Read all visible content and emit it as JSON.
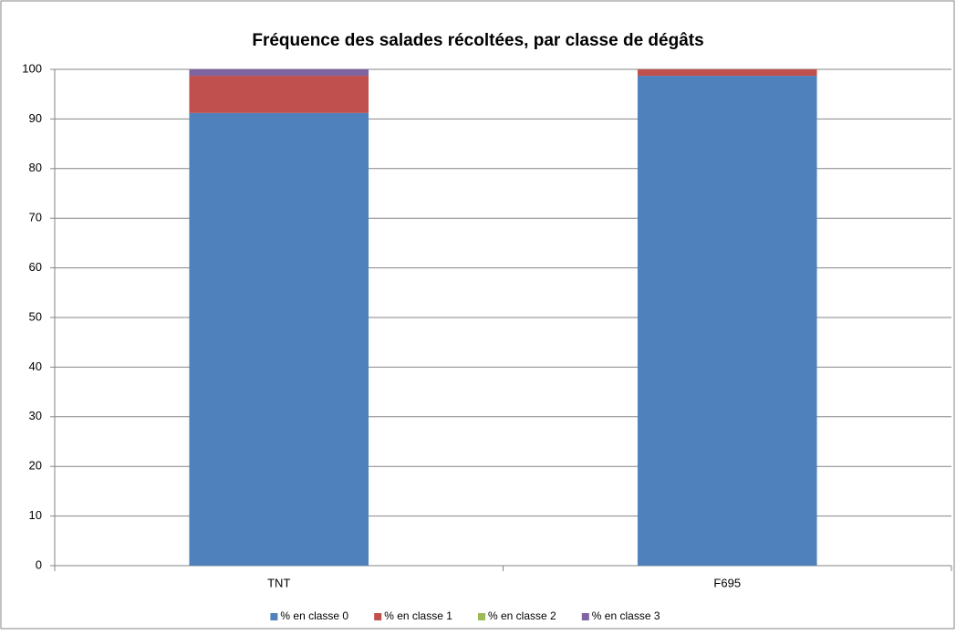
{
  "chart_data": {
    "type": "stacked_bar",
    "title": "Fréquence des salades récoltées, par classe de dégâts",
    "categories": [
      "TNT",
      "F695"
    ],
    "series": [
      {
        "name": "% en classe 0",
        "color": "#4f81bd",
        "values": [
          91.2,
          98.7
        ]
      },
      {
        "name": "% en classe 1",
        "color": "#c0504d",
        "values": [
          7.5,
          1.3
        ]
      },
      {
        "name": "% en classe 2",
        "color": "#9bbb59",
        "values": [
          0,
          0
        ]
      },
      {
        "name": "% en classe 3",
        "color": "#8064a2",
        "values": [
          1.3,
          0
        ]
      }
    ],
    "ylim": [
      0,
      100
    ],
    "yticks": [
      0,
      10,
      20,
      30,
      40,
      50,
      60,
      70,
      80,
      90,
      100
    ],
    "grid": true,
    "legend": "bottom"
  }
}
